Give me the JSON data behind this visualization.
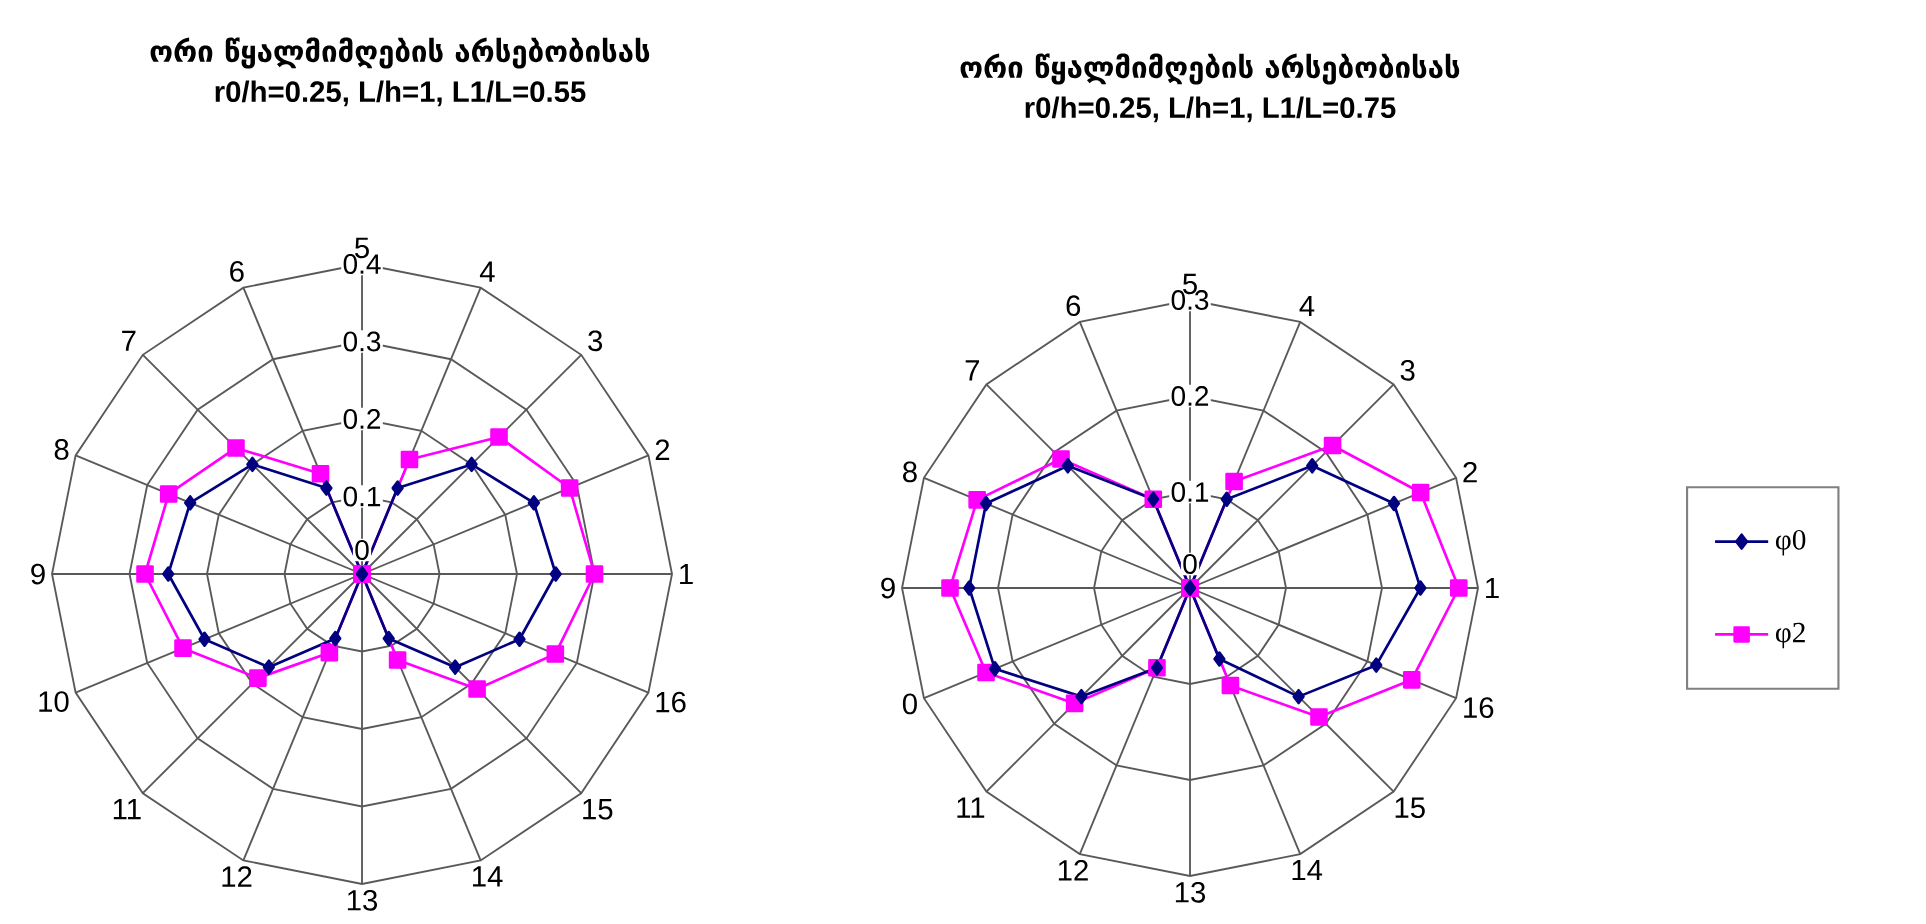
{
  "chart_data": [
    {
      "type": "radar",
      "title": "ორი წყალმიმღების არსებობისას",
      "subtitle": "r0/h=0.25, L/h=1, L1/L=0.55",
      "categories": [
        "5",
        "4",
        "3",
        "2",
        "1",
        "16",
        "15",
        "14",
        "13",
        "12",
        "11",
        "10",
        "9",
        "8",
        "7",
        "6"
      ],
      "ylim": [
        0,
        0.4
      ],
      "yticks": [
        0,
        0.1,
        0.2,
        0.3,
        0.4
      ],
      "grid": true,
      "legend": false,
      "series": [
        {
          "color": "#ff00ff",
          "marker": "square",
          "values": [
            0,
            0.16,
            0.25,
            0.29,
            0.3,
            0.27,
            0.21,
            0.12,
            0,
            0.11,
            0.19,
            0.25,
            0.28,
            0.27,
            0.23,
            0.14
          ]
        },
        {
          "color": "#000080",
          "marker": "diamond",
          "values": [
            0,
            0.12,
            0.2,
            0.24,
            0.25,
            0.22,
            0.17,
            0.09,
            0,
            0.09,
            0.17,
            0.22,
            0.25,
            0.24,
            0.2,
            0.12
          ]
        }
      ]
    },
    {
      "type": "radar",
      "title": "ორი წყალმიმღების არსებობისას",
      "subtitle": "r0/h=0.25, L/h=1, L1/L=0.75",
      "categories": [
        "5",
        "4",
        "3",
        "2",
        "1",
        "16",
        "15",
        "14",
        "13",
        "12",
        "11",
        "0",
        "9",
        "8",
        "7",
        "6"
      ],
      "ylim": [
        0,
        0.3
      ],
      "yticks": [
        0,
        0.1,
        0.2,
        0.3
      ],
      "grid": true,
      "legend": "right",
      "series": [
        {
          "name": "φ2",
          "color": "#ff00ff",
          "marker": "square",
          "values": [
            0,
            0.12,
            0.21,
            0.26,
            0.28,
            0.25,
            0.19,
            0.11,
            0,
            0.09,
            0.17,
            0.23,
            0.25,
            0.24,
            0.19,
            0.1
          ]
        },
        {
          "name": "φ0",
          "color": "#000080",
          "marker": "diamond",
          "values": [
            0,
            0.1,
            0.18,
            0.23,
            0.24,
            0.21,
            0.16,
            0.08,
            0,
            0.09,
            0.16,
            0.22,
            0.23,
            0.23,
            0.18,
            0.1
          ]
        }
      ]
    }
  ]
}
